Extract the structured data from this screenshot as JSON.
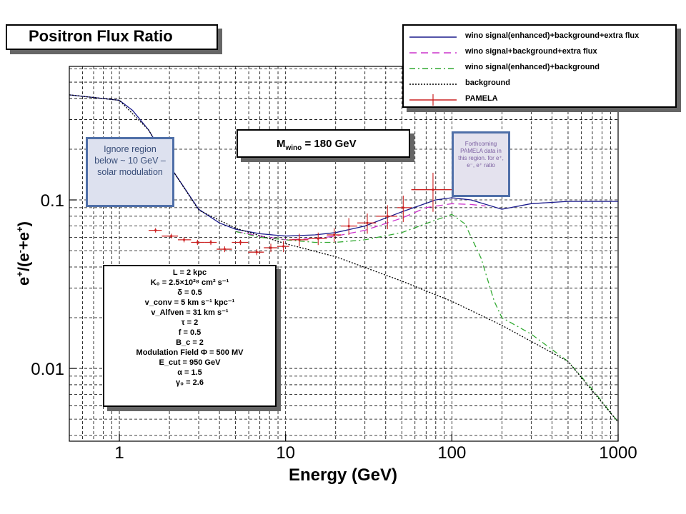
{
  "title": "Positron Flux Ratio",
  "mass_label": {
    "symbol": "M",
    "sub": "wino",
    "value": "= 180 GeV"
  },
  "xlabel": "Energy (GeV)",
  "ylabel": {
    "base": "e",
    "sup1": "+",
    "rest": "/(e",
    "sup2": "-",
    "mid": "+e",
    "sup3": "+",
    "end": ")"
  },
  "ignore_note": "Ignore region below ~ 10 GeV – solar modulation",
  "forthcoming_note": "Forthcoming PAMELA data in this region. for e⁺, e⁻, e⁺ ratio",
  "legend": [
    {
      "label": "wino signal(enhanced)+background+extra flux",
      "color": "#1a1a8c",
      "dash": ""
    },
    {
      "label": "wino signal+background+extra flux",
      "color": "#cc33cc",
      "dash": "10,6"
    },
    {
      "label": "wino signal(enhanced)+background",
      "color": "#33aa33",
      "dash": "8,4,2,4"
    },
    {
      "label": "background",
      "color": "#000000",
      "dash": "2,2"
    },
    {
      "label": "PAMELA",
      "color": "#cc2222",
      "dash": ""
    }
  ],
  "params": [
    "L = 2 kpc",
    "K₀ = 2.5×10²⁸ cm² s⁻¹",
    "δ = 0.5",
    "v_conv = 5 km s⁻¹ kpc⁻¹",
    "v_Alfven = 31 km s⁻¹",
    "τ = 2",
    "f = 0.5",
    "B_c = 2",
    "Modulation Field   Φ = 500 MV",
    "E_cut = 950 GeV",
    "α = 1.5",
    "γ₀ = 2.6"
  ],
  "chart_data": {
    "type": "line",
    "xscale": "log",
    "yscale": "log",
    "xlim": [
      0.5,
      1000
    ],
    "ylim": [
      0.0037,
      0.62
    ],
    "xticks": [
      1,
      10,
      100,
      1000
    ],
    "xtick_labels": [
      "1",
      "10",
      "100",
      "1000"
    ],
    "yticks": [
      0.1,
      0.01
    ],
    "ytick_labels": [
      "0.1",
      "0.01"
    ],
    "xlabel": "Energy (GeV)",
    "ylabel": "e+/(e-+e+)",
    "grid": true,
    "legend_position": "top-right",
    "series": [
      {
        "name": "wino signal(enhanced)+background+extra flux",
        "color": "#1a1a8c",
        "dash": "",
        "x": [
          0.5,
          1,
          1.2,
          1.5,
          2,
          3,
          4,
          5,
          7,
          10,
          15,
          20,
          30,
          50,
          80,
          100,
          130,
          200,
          300,
          500,
          1000
        ],
        "y": [
          0.42,
          0.39,
          0.34,
          0.26,
          0.16,
          0.088,
          0.073,
          0.067,
          0.063,
          0.061,
          0.062,
          0.064,
          0.07,
          0.085,
          0.1,
          0.103,
          0.1,
          0.088,
          0.095,
          0.098,
          0.098
        ]
      },
      {
        "name": "wino signal+background+extra flux",
        "color": "#cc33cc",
        "dash": "10,6",
        "x": [
          5,
          7,
          10,
          15,
          20,
          30,
          50,
          70,
          100,
          130,
          160
        ],
        "y": [
          0.065,
          0.061,
          0.058,
          0.059,
          0.061,
          0.066,
          0.078,
          0.09,
          0.095,
          0.094,
          0.092
        ]
      },
      {
        "name": "wino signal(enhanced)+background",
        "color": "#33aa33",
        "dash": "8,4,2,4",
        "x": [
          5,
          7,
          10,
          15,
          20,
          30,
          50,
          80,
          100,
          120,
          150,
          180,
          200,
          300,
          500,
          700,
          1000
        ],
        "y": [
          0.065,
          0.06,
          0.058,
          0.056,
          0.056,
          0.058,
          0.064,
          0.076,
          0.082,
          0.072,
          0.045,
          0.025,
          0.02,
          0.016,
          0.011,
          0.0075,
          0.0048
        ]
      },
      {
        "name": "background",
        "color": "#000000",
        "dash": "2,2",
        "x": [
          0.5,
          1,
          1.5,
          2,
          3,
          5,
          10,
          20,
          50,
          100,
          200,
          500,
          1000
        ],
        "y": [
          0.42,
          0.39,
          0.26,
          0.16,
          0.087,
          0.068,
          0.055,
          0.046,
          0.033,
          0.025,
          0.018,
          0.011,
          0.0048
        ]
      }
    ],
    "pamela": {
      "name": "PAMELA",
      "color": "#cc2222",
      "x": [
        1.65,
        2.05,
        2.45,
        2.95,
        3.55,
        4.3,
        5.35,
        6.7,
        8.15,
        9.7,
        12.1,
        15.7,
        19.6,
        24,
        31,
        41,
        51,
        77
      ],
      "y": [
        0.066,
        0.061,
        0.058,
        0.056,
        0.056,
        0.051,
        0.056,
        0.049,
        0.052,
        0.053,
        0.058,
        0.059,
        0.062,
        0.07,
        0.073,
        0.08,
        0.09,
        0.115
      ],
      "xerr": [
        [
          1.5,
          1.8
        ],
        [
          1.8,
          2.25
        ],
        [
          2.25,
          2.7
        ],
        [
          2.7,
          3.25
        ],
        [
          3.25,
          3.85
        ],
        [
          3.85,
          4.75
        ],
        [
          4.75,
          5.95
        ],
        [
          5.95,
          7.4
        ],
        [
          7.4,
          8.9
        ],
        [
          8.9,
          10.5
        ],
        [
          10.5,
          13.7
        ],
        [
          13.7,
          17.7
        ],
        [
          17.7,
          21.5
        ],
        [
          21.5,
          27
        ],
        [
          27,
          35
        ],
        [
          35,
          47
        ],
        [
          47,
          57
        ],
        [
          57,
          100
        ]
      ],
      "yerr": [
        0.002,
        0.002,
        0.002,
        0.002,
        0.002,
        0.002,
        0.002,
        0.002,
        0.003,
        0.004,
        0.005,
        0.005,
        0.006,
        0.008,
        0.01,
        0.013,
        0.016,
        0.03
      ]
    }
  }
}
